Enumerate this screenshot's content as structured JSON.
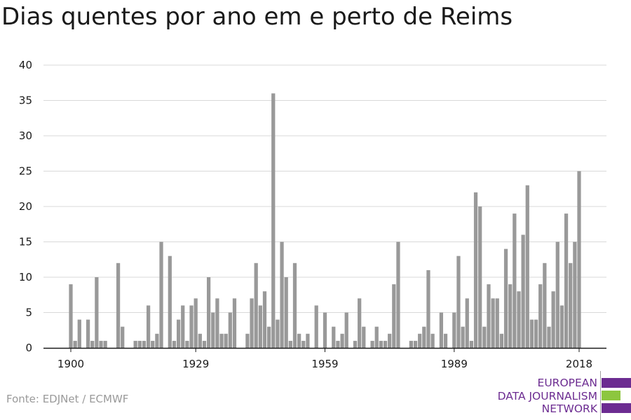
{
  "title": "Dias quentes por ano em e perto de Reims",
  "source": "Fonte: EDJNet / ECMWF",
  "logo": {
    "lines": [
      "EUROPEAN",
      "DATA JOURNALISM",
      "NETWORK"
    ],
    "colors": {
      "text": "#6c2c91",
      "bar_top": "#6c2c91",
      "bar_mid": "#8dc63f",
      "bar_bottom": "#6c2c91"
    }
  },
  "chart_data": {
    "type": "bar",
    "title": "Dias quentes por ano em e perto de Reims",
    "xlabel": "",
    "ylabel": "",
    "x_start": 1900,
    "x_end": 2018,
    "x_ticks": [
      1900,
      1929,
      1959,
      1989,
      2018
    ],
    "y_ticks": [
      0,
      5,
      10,
      15,
      20,
      25,
      30,
      35,
      40
    ],
    "ylim": [
      0,
      40
    ],
    "grid": true,
    "bar_color": "#999999",
    "categories": [
      1900,
      1901,
      1902,
      1903,
      1904,
      1905,
      1906,
      1907,
      1908,
      1909,
      1910,
      1911,
      1912,
      1913,
      1914,
      1915,
      1916,
      1917,
      1918,
      1919,
      1920,
      1921,
      1922,
      1923,
      1924,
      1925,
      1926,
      1927,
      1928,
      1929,
      1930,
      1931,
      1932,
      1933,
      1934,
      1935,
      1936,
      1937,
      1938,
      1939,
      1940,
      1941,
      1942,
      1943,
      1944,
      1945,
      1946,
      1947,
      1948,
      1949,
      1950,
      1951,
      1952,
      1953,
      1954,
      1955,
      1956,
      1957,
      1958,
      1959,
      1960,
      1961,
      1962,
      1963,
      1964,
      1965,
      1966,
      1967,
      1968,
      1969,
      1970,
      1971,
      1972,
      1973,
      1974,
      1975,
      1976,
      1977,
      1978,
      1979,
      1980,
      1981,
      1982,
      1983,
      1984,
      1985,
      1986,
      1987,
      1988,
      1989,
      1990,
      1991,
      1992,
      1993,
      1994,
      1995,
      1996,
      1997,
      1998,
      1999,
      2000,
      2001,
      2002,
      2003,
      2004,
      2005,
      2006,
      2007,
      2008,
      2009,
      2010,
      2011,
      2012,
      2013,
      2014,
      2015,
      2016,
      2017,
      2018
    ],
    "values": [
      9,
      1,
      4,
      0,
      4,
      1,
      10,
      1,
      1,
      0,
      0,
      12,
      3,
      0,
      0,
      1,
      1,
      1,
      6,
      1,
      2,
      15,
      0,
      13,
      1,
      4,
      6,
      1,
      6,
      7,
      2,
      1,
      10,
      5,
      7,
      2,
      2,
      5,
      7,
      0,
      0,
      2,
      7,
      12,
      6,
      8,
      3,
      36,
      4,
      15,
      10,
      1,
      12,
      2,
      1,
      2,
      0,
      6,
      0,
      5,
      0,
      3,
      1,
      2,
      5,
      0,
      1,
      7,
      3,
      0,
      1,
      3,
      1,
      1,
      2,
      9,
      15,
      0,
      0,
      1,
      1,
      2,
      3,
      11,
      2,
      0,
      5,
      2,
      0,
      5,
      13,
      3,
      7,
      1,
      22,
      20,
      3,
      9,
      7,
      7,
      2,
      14,
      9,
      19,
      8,
      16,
      23,
      4,
      4,
      9,
      12,
      3,
      8,
      15,
      6,
      19,
      12,
      15,
      25
    ]
  }
}
